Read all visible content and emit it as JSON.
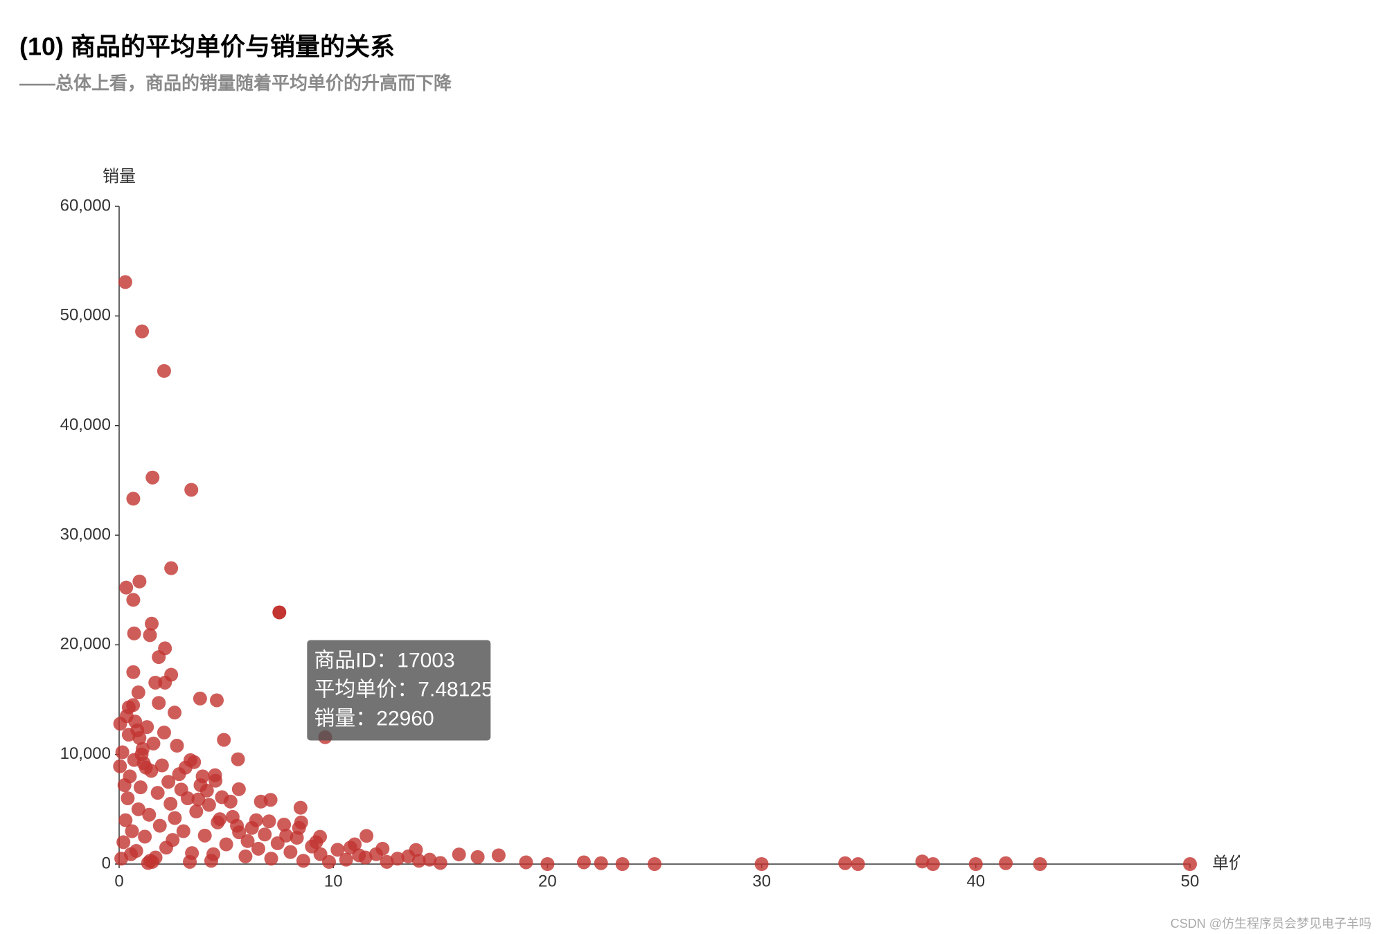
{
  "chart_data": {
    "type": "scatter",
    "title": "(10) 商品的平均单价与销量的关系",
    "subtitle": "——总体上看，商品的销量随着平均单价的升高而下降",
    "x_label": "单价",
    "y_label": "销量",
    "color": "#c23531",
    "xlim": [
      0,
      50
    ],
    "xticks": [
      0,
      10,
      20,
      30,
      40,
      50
    ],
    "ylim": [
      0,
      60000
    ],
    "yticks": [
      0,
      {
        "value": 10000,
        "label": "10,000"
      },
      {
        "value": 20000,
        "label": "20,000"
      },
      {
        "value": 30000,
        "label": "30,000"
      },
      {
        "value": 40000,
        "label": "40,000"
      },
      {
        "value": 50000,
        "label": "50,000"
      },
      {
        "value": 60000,
        "label": "60,000"
      }
    ],
    "series": [
      {
        "name": "销量",
        "x": [
          0.29,
          1.07,
          2.1,
          1.56,
          3.37,
          0.66,
          2.43,
          0.95,
          0.33,
          0.66,
          1.52,
          0.7,
          1.44,
          2.14,
          1.85,
          0.66,
          2.43,
          1.69,
          2.14,
          0.9,
          3.78,
          4.56,
          1.85,
          0.45,
          2.59,
          4.89,
          9.62,
          5.55,
          3.33,
          0.04,
          4.48,
          5.59,
          7.07,
          6.62,
          8.47,
          11.55,
          9.38,
          13.86,
          15.87,
          16.74,
          17.72,
          19.0,
          20,
          21.7,
          22.5,
          23.5,
          25,
          30,
          33.9,
          34.5,
          37.5,
          38,
          40,
          41.4,
          43,
          50,
          0.1,
          0.2,
          0.3,
          0.4,
          0.5,
          0.6,
          0.7,
          0.8,
          0.9,
          1.0,
          1.1,
          1.2,
          1.3,
          1.4,
          1.5,
          1.6,
          1.7,
          1.8,
          1.9,
          2.0,
          2.1,
          2.2,
          2.3,
          2.4,
          2.5,
          2.6,
          2.8,
          3.0,
          3.2,
          3.4,
          3.6,
          3.8,
          4.0,
          4.2,
          4.4,
          4.6,
          4.8,
          5.0,
          5.3,
          5.6,
          5.9,
          6.2,
          6.5,
          6.8,
          7.1,
          7.4,
          7.7,
          8.0,
          8.3,
          8.6,
          9.0,
          9.4,
          9.8,
          10.2,
          10.6,
          11.0,
          11.5,
          12.0,
          12.5,
          13.0,
          13.5,
          14.0,
          14.5,
          15.0,
          0.05,
          0.15,
          0.25,
          0.35,
          0.45,
          0.55,
          0.65,
          0.75,
          0.85,
          0.95,
          1.05,
          1.15,
          1.25,
          1.35,
          1.45,
          1.55,
          2.7,
          2.9,
          3.1,
          3.3,
          3.5,
          3.7,
          3.9,
          4.1,
          4.3,
          4.5,
          4.7,
          5.2,
          5.5,
          6.0,
          6.4,
          7.0,
          7.8,
          8.4,
          8.5,
          9.2,
          10.8,
          11.2,
          12.3
        ],
        "values": [
          53090,
          48590,
          44980,
          35260,
          34140,
          33330,
          26990,
          25780,
          25220,
          24100,
          21930,
          21040,
          20880,
          19680,
          18880,
          17510,
          17270,
          16550,
          16550,
          15660,
          15100,
          14940,
          14700,
          14300,
          13820,
          11330,
          11570,
          9560,
          9480,
          8920,
          8110,
          6830,
          5860,
          5700,
          5140,
          2570,
          2490,
          1290,
          880,
          640,
          800,
          160,
          0,
          160,
          80,
          0,
          0,
          0,
          80,
          0,
          240,
          0,
          0,
          80,
          0,
          0,
          500,
          2000,
          4000,
          6000,
          8000,
          3000,
          9500,
          1200,
          5000,
          7000,
          10500,
          2500,
          12500,
          4500,
          8500,
          11000,
          600,
          6500,
          3500,
          9000,
          12000,
          1500,
          7500,
          5500,
          2200,
          4200,
          8200,
          3000,
          6000,
          1000,
          4800,
          7200,
          2600,
          5400,
          900,
          3800,
          6100,
          1800,
          4300,
          2900,
          700,
          3300,
          1400,
          2700,
          500,
          1900,
          3600,
          1100,
          2400,
          300,
          1600,
          900,
          200,
          1300,
          400,
          1800,
          600,
          900,
          200,
          500,
          700,
          300,
          400,
          100,
          12800,
          10200,
          7200,
          13500,
          11800,
          900,
          14500,
          13000,
          12200,
          11500,
          10000,
          9200,
          8800,
          100,
          300,
          200,
          10800,
          6800,
          8800,
          200,
          9300,
          5900,
          8000,
          6700,
          300,
          7600,
          4100,
          5700,
          3500,
          2100,
          4000,
          3900,
          2600,
          3300,
          3800,
          2000,
          1500,
          800,
          1400
        ]
      }
    ],
    "highlight": {
      "x": 7.48125,
      "value": 22960
    },
    "tooltip": [
      "商品ID：17003",
      "平均单价：7.48125",
      "销量：22960"
    ],
    "watermark": "CSDN @仿生程序员会梦见电子羊吗"
  }
}
